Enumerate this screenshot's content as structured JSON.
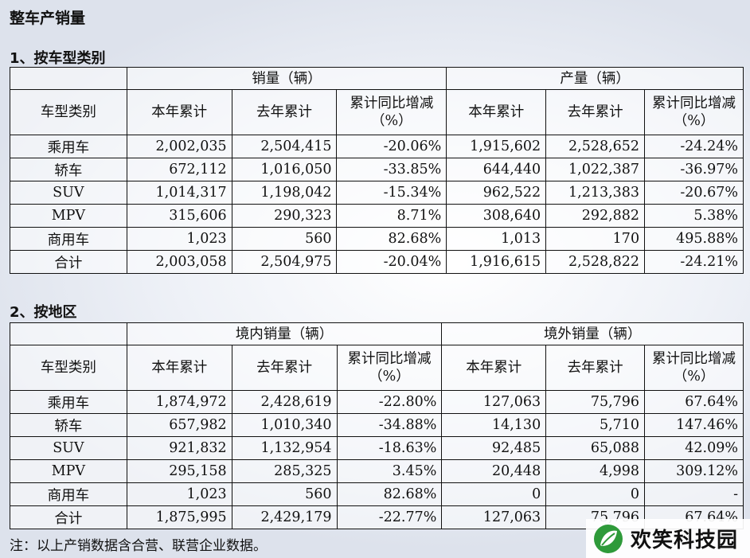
{
  "page_title": "整车产销量",
  "sec1": {
    "title": "1、按车型类别",
    "group1": "销量（辆）",
    "group2": "产量（辆）",
    "headers": [
      "车型类别",
      "本年累计",
      "去年累计",
      "累计同比增减（%）",
      "本年累计",
      "去年累计",
      "累计同比增减（%）"
    ],
    "rows": [
      [
        "乘用车",
        "2,002,035",
        "2,504,415",
        "-20.06%",
        "1,915,602",
        "2,528,652",
        "-24.24%"
      ],
      [
        "轿车",
        "672,112",
        "1,016,050",
        "-33.85%",
        "644,440",
        "1,022,387",
        "-36.97%"
      ],
      [
        "SUV",
        "1,014,317",
        "1,198,042",
        "-15.34%",
        "962,522",
        "1,213,383",
        "-20.67%"
      ],
      [
        "MPV",
        "315,606",
        "290,323",
        "8.71%",
        "308,640",
        "292,882",
        "5.38%"
      ],
      [
        "商用车",
        "1,023",
        "560",
        "82.68%",
        "1,013",
        "170",
        "495.88%"
      ],
      [
        "合计",
        "2,003,058",
        "2,504,975",
        "-20.04%",
        "1,916,615",
        "2,528,822",
        "-24.21%"
      ]
    ]
  },
  "sec2": {
    "title": "2、按地区",
    "group1": "境内销量（辆）",
    "group2": "境外销量（辆）",
    "headers": [
      "车型类别",
      "本年累计",
      "去年累计",
      "累计同比增减（%）",
      "本年累计",
      "去年累计",
      "累计同比增减（%）"
    ],
    "rows": [
      [
        "乘用车",
        "1,874,972",
        "2,428,619",
        "-22.80%",
        "127,063",
        "75,796",
        "67.64%"
      ],
      [
        "轿车",
        "657,982",
        "1,010,340",
        "-34.88%",
        "14,130",
        "5,710",
        "147.46%"
      ],
      [
        "SUV",
        "921,832",
        "1,132,954",
        "-18.63%",
        "92,485",
        "65,088",
        "42.09%"
      ],
      [
        "MPV",
        "295,158",
        "285,325",
        "3.45%",
        "20,448",
        "4,998",
        "309.12%"
      ],
      [
        "商用车",
        "1,023",
        "560",
        "82.68%",
        "0",
        "0",
        "-"
      ],
      [
        "合计",
        "1,875,995",
        "2,429,179",
        "-22.77%",
        "127,063",
        "75,796",
        "67.64%"
      ]
    ]
  },
  "note": "注：以上产销数据含合营、联营企业数据。",
  "watermark": {
    "text": "欢笑科技园",
    "icon": "leaf-logo-icon",
    "accent": "#2e9a3a"
  }
}
